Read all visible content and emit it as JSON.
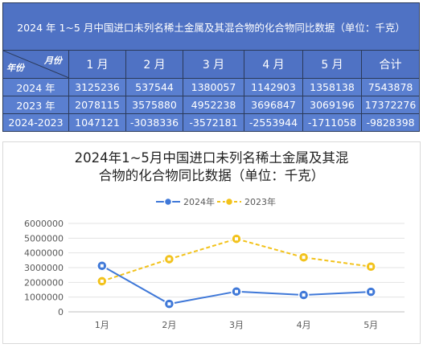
{
  "table": {
    "title": "2024 年 1~5 月中国进口未列名稀土金属及其混合物的化合物同比数据（单位：千克）",
    "corner_top": "月份",
    "corner_bottom": "年份",
    "columns": [
      "1 月",
      "2 月",
      "3 月",
      "4 月",
      "5 月",
      "合计"
    ],
    "rows": [
      {
        "label": "2024 年",
        "values": [
          "3125236",
          "537544",
          "1380057",
          "1142903",
          "1358138",
          "7543878"
        ]
      },
      {
        "label": "2023 年",
        "values": [
          "2078115",
          "3575880",
          "4952238",
          "3696847",
          "3069196",
          "17372276"
        ]
      },
      {
        "label": "2024-2023",
        "values": [
          "1047121",
          "-3038336",
          "-3572181",
          "-2553944",
          "-1711058",
          "-9828398"
        ]
      }
    ]
  },
  "chart_data": {
    "type": "line",
    "title_line1": "2024年1~5月中国进口未列名稀土金属及其混",
    "title_line2": "合物的化合物同比数据（单位：千克）",
    "categories": [
      "1月",
      "2月",
      "3月",
      "4月",
      "5月"
    ],
    "series": [
      {
        "name": "2024年",
        "values": [
          3125236,
          537544,
          1380057,
          1142903,
          1358138
        ],
        "color": "#3f78d8",
        "style": "solid"
      },
      {
        "name": "2023年",
        "values": [
          2078115,
          3575880,
          4952238,
          3696847,
          3069196
        ],
        "color": "#f2c21b",
        "style": "dashed"
      }
    ],
    "ylim": [
      0,
      6000000
    ],
    "yticks": [
      0,
      1000000,
      2000000,
      3000000,
      4000000,
      5000000,
      6000000
    ],
    "ytick_labels": [
      "0",
      "1000000",
      "2000000",
      "3000000",
      "4000000",
      "5000000",
      "6000000"
    ],
    "grid": true,
    "legend": "top"
  }
}
